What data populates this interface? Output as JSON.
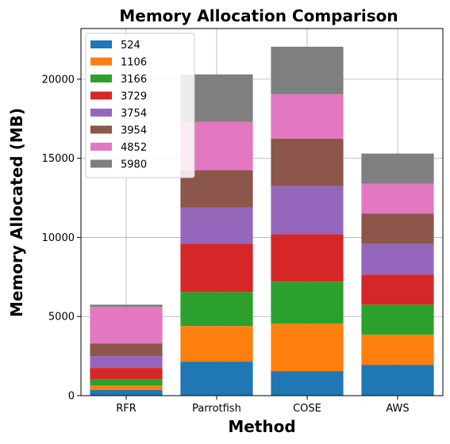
{
  "chart_data": {
    "type": "bar",
    "stacked": true,
    "title": "Memory Allocation Comparison",
    "xlabel": "Method",
    "ylabel": "Memory Allocated (MB)",
    "categories": [
      "RFR",
      "Parrotfish",
      "COSE",
      "AWS"
    ],
    "ylim": [
      0,
      23200
    ],
    "yticks": [
      0,
      5000,
      10000,
      15000,
      20000
    ],
    "grid": true,
    "legend_position": "top-left",
    "series": [
      {
        "name": "524",
        "color": "#1f77b4",
        "values": [
          350,
          2150,
          1550,
          1950
        ]
      },
      {
        "name": "1106",
        "color": "#ff7f0e",
        "values": [
          300,
          2250,
          3000,
          1900
        ]
      },
      {
        "name": "3166",
        "color": "#2ca02c",
        "values": [
          400,
          2150,
          2650,
          1900
        ]
      },
      {
        "name": "3729",
        "color": "#d62728",
        "values": [
          700,
          3050,
          3000,
          1900
        ]
      },
      {
        "name": "3754",
        "color": "#9467bd",
        "values": [
          750,
          2300,
          3050,
          1950
        ]
      },
      {
        "name": "3954",
        "color": "#8c564b",
        "values": [
          800,
          2350,
          3000,
          1900
        ]
      },
      {
        "name": "4852",
        "color": "#e377c2",
        "values": [
          2300,
          3050,
          2800,
          1900
        ]
      },
      {
        "name": "5980",
        "color": "#7f7f7f",
        "values": [
          150,
          3000,
          3000,
          1900
        ]
      }
    ]
  }
}
